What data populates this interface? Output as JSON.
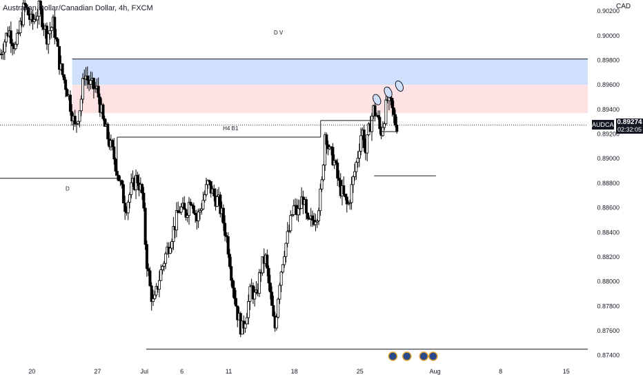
{
  "header": {
    "title": "Australian Dollar/Canadian Dollar, 4h, FXCM",
    "currency": "CAD"
  },
  "price_tag": {
    "symbol": "AUDCAD",
    "price": "0.89274",
    "countdown": "02:32:05"
  },
  "colors": {
    "candle_up": "#000000",
    "candle_down": "#000000",
    "zone_blue": "#cfe0fd",
    "zone_red": "#fde3e4",
    "line": "#131722",
    "price_line": "#131722"
  },
  "chart_data": {
    "type": "candlestick",
    "symbol": "AUDCAD",
    "timeframe": "4h",
    "y_axis": {
      "ylim": [
        0.8732,
        0.9029
      ],
      "ticks": [
        "0.90200",
        "0.90000",
        "0.89800",
        "0.89600",
        "0.89400",
        "0.89200",
        "0.89000",
        "0.88800",
        "0.88600",
        "0.88400",
        "0.88200",
        "0.88000",
        "0.87800",
        "0.87600",
        "0.87400"
      ]
    },
    "x_axis": {
      "ticks": [
        {
          "label": "20",
          "day": 20
        },
        {
          "label": "27",
          "day": 27
        },
        {
          "label": "Jul",
          "day": 32
        },
        {
          "label": "6",
          "day": 36
        },
        {
          "label": "11",
          "day": 41
        },
        {
          "label": "18",
          "day": 48
        },
        {
          "label": "25",
          "day": 55
        },
        {
          "label": "Aug",
          "day": 63
        },
        {
          "label": "8",
          "day": 70
        },
        {
          "label": "15",
          "day": 77
        }
      ],
      "xlim": [
        16.6,
        79.3
      ]
    },
    "current_price": 0.89274,
    "price_path": [
      [
        16.6,
        0.8985
      ],
      [
        17.5,
        0.9005
      ],
      [
        18.3,
        0.899
      ],
      [
        19.2,
        0.9025
      ],
      [
        20.0,
        0.901
      ],
      [
        20.8,
        0.9022
      ],
      [
        21.6,
        0.9
      ],
      [
        22.3,
        0.901
      ],
      [
        23.0,
        0.8975
      ],
      [
        23.8,
        0.8955
      ],
      [
        24.6,
        0.8925
      ],
      [
        25.2,
        0.8945
      ],
      [
        25.6,
        0.897
      ],
      [
        26.2,
        0.896
      ],
      [
        27.0,
        0.8955
      ],
      [
        27.6,
        0.893
      ],
      [
        28.2,
        0.8915
      ],
      [
        28.8,
        0.89
      ],
      [
        29.4,
        0.888
      ],
      [
        30.0,
        0.886
      ],
      [
        30.6,
        0.8875
      ],
      [
        31.2,
        0.8885
      ],
      [
        31.8,
        0.887
      ],
      [
        32.2,
        0.882
      ],
      [
        32.6,
        0.8795
      ],
      [
        33.0,
        0.878
      ],
      [
        33.5,
        0.88
      ],
      [
        34.0,
        0.8815
      ],
      [
        34.6,
        0.883
      ],
      [
        35.2,
        0.8845
      ],
      [
        35.8,
        0.886
      ],
      [
        36.4,
        0.8855
      ],
      [
        37.0,
        0.887
      ],
      [
        37.6,
        0.885
      ],
      [
        38.2,
        0.8865
      ],
      [
        38.8,
        0.888
      ],
      [
        39.4,
        0.887
      ],
      [
        39.9,
        0.8865
      ],
      [
        40.4,
        0.885
      ],
      [
        40.9,
        0.883
      ],
      [
        41.4,
        0.88
      ],
      [
        41.9,
        0.8775
      ],
      [
        42.4,
        0.876
      ],
      [
        42.9,
        0.8775
      ],
      [
        43.4,
        0.8795
      ],
      [
        43.9,
        0.8785
      ],
      [
        44.4,
        0.881
      ],
      [
        44.9,
        0.882
      ],
      [
        45.4,
        0.879
      ],
      [
        45.9,
        0.876
      ],
      [
        46.4,
        0.88
      ],
      [
        46.9,
        0.8825
      ],
      [
        47.4,
        0.884
      ],
      [
        47.9,
        0.886
      ],
      [
        48.4,
        0.8855
      ],
      [
        48.9,
        0.887
      ],
      [
        49.4,
        0.8845
      ],
      [
        49.9,
        0.885
      ],
      [
        50.4,
        0.8855
      ],
      [
        50.9,
        0.8875
      ],
      [
        51.3,
        0.8925
      ],
      [
        51.7,
        0.8905
      ],
      [
        52.2,
        0.89
      ],
      [
        52.7,
        0.888
      ],
      [
        53.2,
        0.887
      ],
      [
        53.7,
        0.886
      ],
      [
        54.2,
        0.888
      ],
      [
        54.7,
        0.89
      ],
      [
        55.2,
        0.8925
      ],
      [
        55.6,
        0.8905
      ],
      [
        56.0,
        0.8925
      ],
      [
        56.4,
        0.894
      ],
      [
        56.8,
        0.8935
      ],
      [
        57.2,
        0.892
      ],
      [
        57.6,
        0.8935
      ],
      [
        58.0,
        0.895
      ],
      [
        58.4,
        0.894
      ],
      [
        58.7,
        0.893
      ],
      [
        59.0,
        0.8927
      ]
    ],
    "zones": [
      {
        "type": "supply-blue",
        "from_day": 24.3,
        "to_day": 79.3,
        "top": 0.8981,
        "bottom": 0.896
      },
      {
        "type": "supply-red",
        "from_day": 24.3,
        "to_day": 79.3,
        "top": 0.896,
        "bottom": 0.8937
      }
    ],
    "annotations": [
      {
        "text": "D V",
        "day": 46.3,
        "price": 0.9001
      },
      {
        "text": "H4 B1",
        "day": 41.2,
        "price": 0.8923
      },
      {
        "text": "D",
        "day": 23.8,
        "price": 0.8874
      }
    ],
    "lines": [
      {
        "from_day": 24.3,
        "to_day": 79.3,
        "price": 0.8981
      },
      {
        "from_day": 16.6,
        "to_day": 29.1,
        "price": 0.8884
      },
      {
        "from_day": 29.1,
        "to_day": 50.8,
        "price": 0.89175
      },
      {
        "from_day": 29.1,
        "to_day": 29.1,
        "price": 0.89175,
        "to_price": 0.8884
      },
      {
        "from_day": 50.8,
        "to_day": 56.5,
        "price": 0.8931
      },
      {
        "from_day": 50.8,
        "to_day": 50.8,
        "price": 0.8931,
        "to_price": 0.89175
      },
      {
        "from_day": 56.5,
        "to_day": 63.1,
        "price": 0.8886
      },
      {
        "from_day": 57.1,
        "to_day": 59.0,
        "price": 0.8922
      },
      {
        "from_day": 32.2,
        "to_day": 79.3,
        "price": 0.8745
      }
    ],
    "ellipse_markers": [
      {
        "day": 56.8,
        "price": 0.8948
      },
      {
        "day": 58.0,
        "price": 0.8954
      },
      {
        "day": 59.2,
        "price": 0.8959
      }
    ],
    "event_icons": [
      {
        "day": 58.5
      },
      {
        "day": 60.0
      },
      {
        "day": 61.8
      },
      {
        "day": 62.8
      }
    ]
  }
}
